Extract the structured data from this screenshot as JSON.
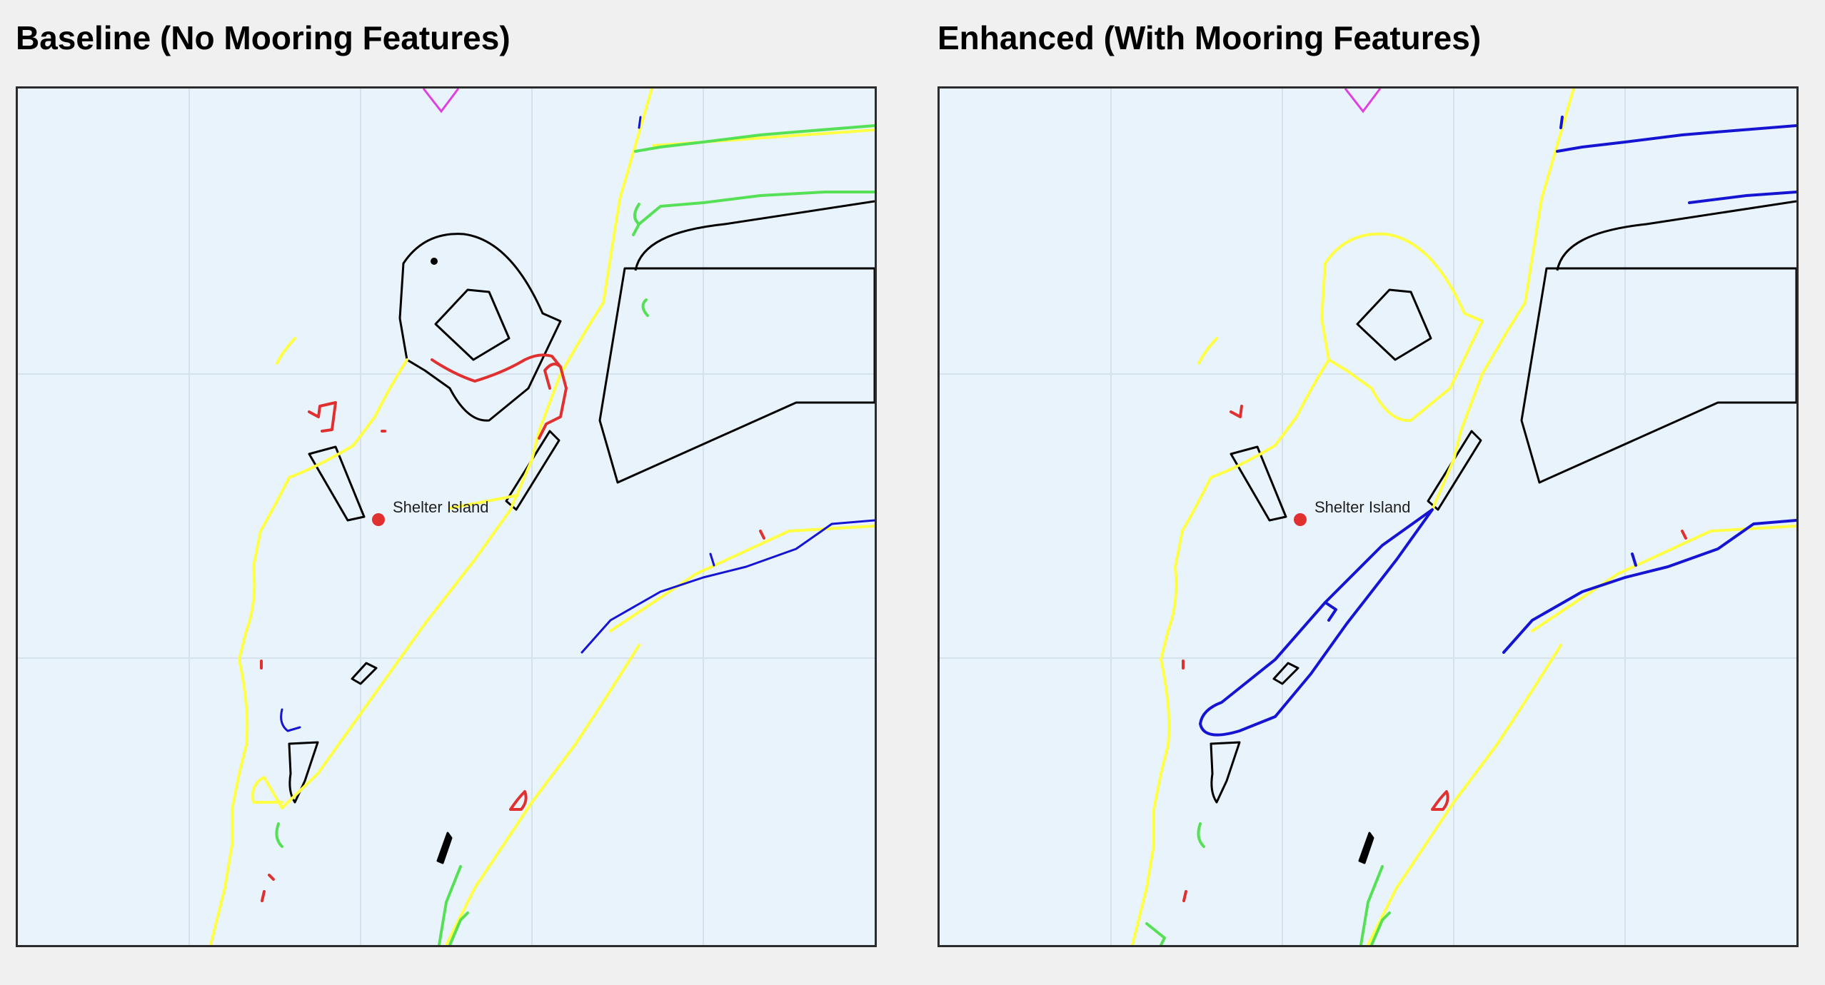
{
  "panels": [
    {
      "title": "Baseline (No Mooring Features)",
      "place_label": "Shelter Island"
    },
    {
      "title": "Enhanced (With Mooring Features)",
      "place_label": "Shelter Island"
    }
  ],
  "colors": {
    "water": "#e8f3fc",
    "grid": "#d5e1ec",
    "land_outline": "#000000",
    "track_yellow": "#ffff44",
    "track_blue": "#1414d2",
    "track_green": "#55e055",
    "track_red": "#e03030",
    "marker_magenta": "#e040e0",
    "place_marker": "#e03030"
  }
}
